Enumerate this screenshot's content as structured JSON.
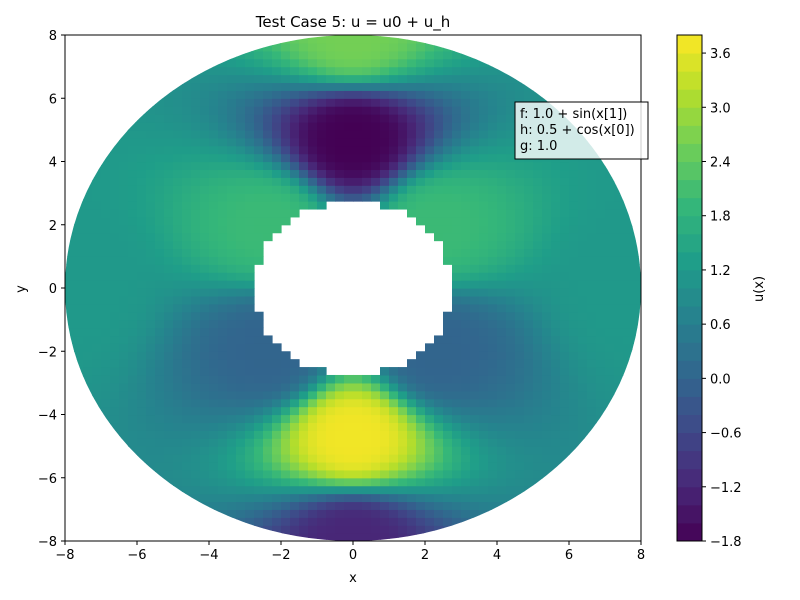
{
  "chart_data": {
    "type": "heatmap",
    "title": "Test Case 5: u = u0 + u_h",
    "xlabel": "x",
    "ylabel": "y",
    "xlim": [
      -8,
      8
    ],
    "ylim": [
      -8,
      8
    ],
    "x_ticks": [
      -8,
      -6,
      -4,
      -2,
      0,
      2,
      4,
      6,
      8
    ],
    "y_ticks": [
      -8,
      -6,
      -4,
      -2,
      0,
      2,
      4,
      6,
      8
    ],
    "domain": {
      "shape": "annulus",
      "inner_radius": 3,
      "outer_radius": 8,
      "center": [
        0,
        0
      ]
    },
    "field_samples": [
      {
        "x": 0,
        "y": 4.7,
        "u": -1.8
      },
      {
        "x": 0,
        "y": -4.7,
        "u": 3.7
      },
      {
        "x": 0,
        "y": 8,
        "u": 2.6
      },
      {
        "x": 0,
        "y": -8,
        "u": -1.2
      },
      {
        "x": 8,
        "y": 0,
        "u": 1.2
      },
      {
        "x": -8,
        "y": 0,
        "u": 1.2
      },
      {
        "x": -2.3,
        "y": 2.0,
        "u": 2.0
      },
      {
        "x": 2.3,
        "y": 2.0,
        "u": 2.0
      },
      {
        "x": -2.3,
        "y": -2.0,
        "u": 0.0
      },
      {
        "x": 2.3,
        "y": -2.0,
        "u": 0.0
      }
    ],
    "colorbar": {
      "label": "u(x)",
      "min": -1.8,
      "max": 3.8,
      "ticks": [
        -1.8,
        -1.2,
        -0.6,
        0.0,
        0.6,
        1.2,
        1.8,
        2.4,
        3.0,
        3.6
      ],
      "tick_labels": [
        "−1.8",
        "−1.2",
        "−0.6",
        "0.0",
        "0.6",
        "1.2",
        "1.8",
        "2.4",
        "3.0",
        "3.6"
      ],
      "colormap": "viridis"
    },
    "annotation": {
      "lines": [
        "f: 1.0 + sin(x[1])",
        "h: 0.5 + cos(x[0])",
        "g: 1.0"
      ],
      "placement": "top-right"
    }
  }
}
